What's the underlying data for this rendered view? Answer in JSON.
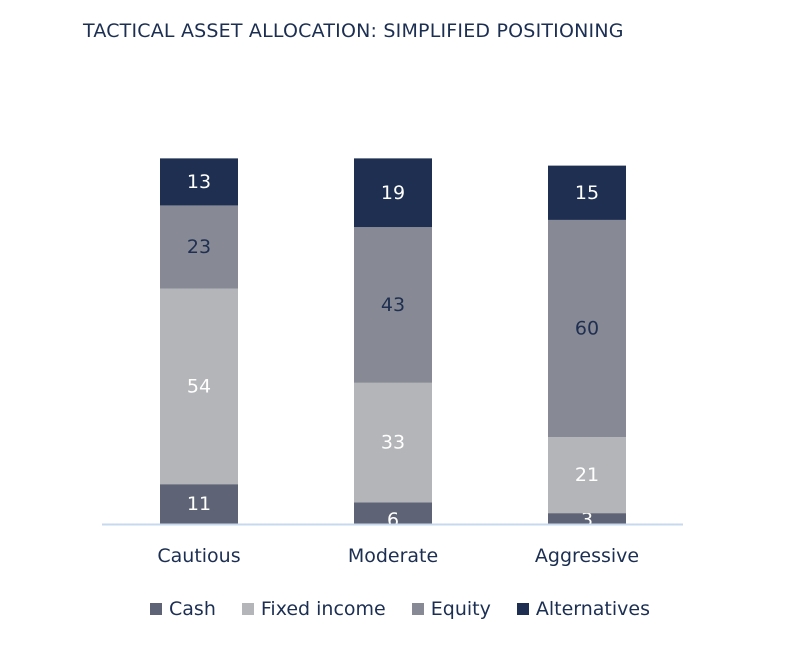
{
  "title": "TACTICAL ASSET ALLOCATION: SIMPLIFIED POSITIONING",
  "colors": {
    "cash": "#5e6475",
    "fixed_income": "#b4b5b9",
    "equity": "#878a94",
    "alternatives": "#1f2f51",
    "axis": "#c7d9ed",
    "label_light": "#ffffff",
    "label_dark": "#1f2f51"
  },
  "chart_data": {
    "type": "bar",
    "stacked": true,
    "categories": [
      "Cautious",
      "Moderate",
      "Aggressive"
    ],
    "series": [
      {
        "name": "Cash",
        "values": [
          11,
          6,
          3
        ],
        "color": "#5e6475"
      },
      {
        "name": "Fixed income",
        "values": [
          54,
          33,
          21
        ],
        "color": "#b4b5b9"
      },
      {
        "name": "Equity",
        "values": [
          23,
          43,
          60
        ],
        "color": "#878a94"
      },
      {
        "name": "Alternatives",
        "values": [
          13,
          19,
          15
        ],
        "color": "#1f2f51"
      }
    ],
    "ylim": [
      0,
      100
    ],
    "grid": false,
    "legend_position": "bottom"
  }
}
